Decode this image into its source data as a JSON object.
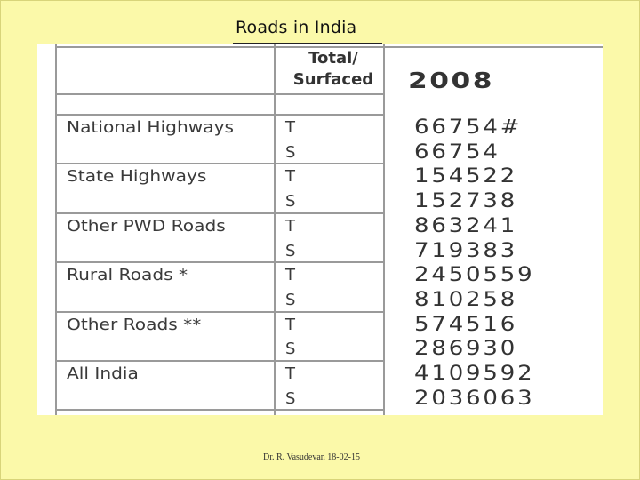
{
  "slide": {
    "title": "Roads in India",
    "footer": "Dr. R. Vasudevan 18-02-15"
  },
  "table": {
    "type_header": [
      "Total/",
      "Surfaced"
    ],
    "year_header": "2008",
    "rows": [
      {
        "category": "National Highways",
        "code": "T",
        "value": "66754#"
      },
      {
        "category": "",
        "code": "S",
        "value": "66754"
      },
      {
        "category": "State Highways",
        "code": "T",
        "value": "154522"
      },
      {
        "category": "",
        "code": "S",
        "value": "152738"
      },
      {
        "category": "Other PWD Roads",
        "code": "T",
        "value": "863241"
      },
      {
        "category": "",
        "code": "S",
        "value": "719383"
      },
      {
        "category": "Rural Roads *",
        "code": "T",
        "value": "2450559"
      },
      {
        "category": "",
        "code": "S",
        "value": "810258"
      },
      {
        "category": "Other Roads **",
        "code": "T",
        "value": "574516"
      },
      {
        "category": "",
        "code": "S",
        "value": "286930"
      },
      {
        "category": "All India",
        "code": "T",
        "value": "4109592"
      },
      {
        "category": "",
        "code": "S",
        "value": "2036063"
      }
    ]
  },
  "colors": {
    "slide_background": "#fbf9a9",
    "table_background": "#ffffff",
    "grid_lines": "#9a9a9a",
    "text": "#333333"
  }
}
